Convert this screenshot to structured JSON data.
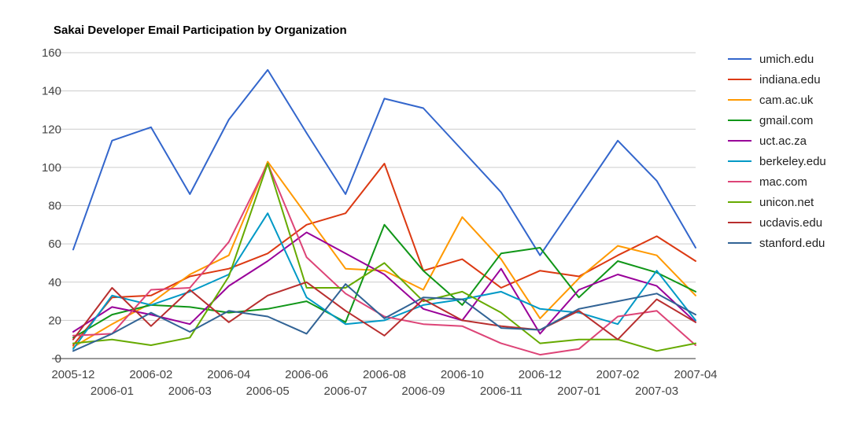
{
  "chart_data": {
    "type": "line",
    "title": "Sakai Developer Email Participation by Organization",
    "xlabel": "",
    "ylabel": "",
    "ylim": [
      0,
      160
    ],
    "yticks": [
      0,
      20,
      40,
      60,
      80,
      100,
      120,
      140,
      160
    ],
    "grid": true,
    "legend": "right",
    "categories": [
      "2005-12",
      "2006-01",
      "2006-02",
      "2006-03",
      "2006-04",
      "2006-05",
      "2006-06",
      "2006-07",
      "2006-08",
      "2006-09",
      "2006-10",
      "2006-11",
      "2006-12",
      "2007-01",
      "2007-02",
      "2007-03",
      "2007-04"
    ],
    "x_tick_labels": [
      {
        "label": "2005-12",
        "row": 0,
        "pos": 0
      },
      {
        "label": "2006-01",
        "row": 1,
        "pos": 1
      },
      {
        "label": "2006-02",
        "row": 0,
        "pos": 2
      },
      {
        "label": "2006-03",
        "row": 1,
        "pos": 3
      },
      {
        "label": "2006-04",
        "row": 0,
        "pos": 4
      },
      {
        "label": "2006-05",
        "row": 1,
        "pos": 5
      },
      {
        "label": "2006-06",
        "row": 0,
        "pos": 6
      },
      {
        "label": "2006-07",
        "row": 1,
        "pos": 7
      },
      {
        "label": "2006-08",
        "row": 0,
        "pos": 8
      },
      {
        "label": "2006-09",
        "row": 1,
        "pos": 9
      },
      {
        "label": "2006-10",
        "row": 0,
        "pos": 10
      },
      {
        "label": "2006-11",
        "row": 1,
        "pos": 11
      },
      {
        "label": "2006-12",
        "row": 0,
        "pos": 12
      },
      {
        "label": "2007-01",
        "row": 1,
        "pos": 13
      },
      {
        "label": "2007-02",
        "row": 0,
        "pos": 14
      },
      {
        "label": "2007-03",
        "row": 1,
        "pos": 15
      },
      {
        "label": "2007-04",
        "row": 0,
        "pos": 16
      }
    ],
    "series": [
      {
        "name": "umich.edu",
        "color": "#3366cc",
        "values": [
          57,
          114,
          121,
          86,
          125,
          151,
          118,
          86,
          136,
          131,
          109,
          87,
          54,
          84,
          114,
          93,
          58
        ]
      },
      {
        "name": "indiana.edu",
        "color": "#dc3912",
        "values": [
          7,
          32,
          33,
          43,
          47,
          55,
          70,
          76,
          102,
          46,
          52,
          37,
          46,
          43,
          54,
          64,
          51
        ]
      },
      {
        "name": "cam.ac.uk",
        "color": "#ff9900",
        "values": [
          6,
          18,
          29,
          44,
          54,
          103,
          75,
          47,
          46,
          36,
          74,
          52,
          21,
          42,
          59,
          54,
          33
        ]
      },
      {
        "name": "gmail.com",
        "color": "#109618",
        "values": [
          11,
          23,
          28,
          27,
          24,
          26,
          30,
          19,
          70,
          46,
          28,
          55,
          58,
          32,
          51,
          45,
          35
        ]
      },
      {
        "name": "uct.ac.za",
        "color": "#990099",
        "values": [
          14,
          27,
          23,
          18,
          38,
          51,
          66,
          55,
          44,
          26,
          20,
          47,
          13,
          36,
          44,
          38,
          19
        ]
      },
      {
        "name": "berkeley.edu",
        "color": "#0099c6",
        "values": [
          5,
          33,
          28,
          35,
          44,
          76,
          32,
          18,
          20,
          28,
          31,
          35,
          26,
          24,
          18,
          46,
          20
        ]
      },
      {
        "name": "mac.com",
        "color": "#dd4477",
        "values": [
          12,
          13,
          36,
          37,
          61,
          102,
          53,
          34,
          22,
          18,
          17,
          8,
          2,
          5,
          22,
          25,
          7
        ]
      },
      {
        "name": "unicon.net",
        "color": "#66aa00",
        "values": [
          8,
          10,
          7,
          11,
          43,
          102,
          37,
          37,
          50,
          30,
          35,
          24,
          8,
          10,
          10,
          4,
          8
        ]
      },
      {
        "name": "ucdavis.edu",
        "color": "#b82e2e",
        "values": [
          10,
          37,
          17,
          36,
          19,
          33,
          40,
          25,
          12,
          31,
          20,
          17,
          15,
          25,
          10,
          31,
          19
        ]
      },
      {
        "name": "stanford.edu",
        "color": "#316395",
        "values": [
          4,
          13,
          24,
          14,
          25,
          22,
          13,
          39,
          21,
          32,
          31,
          16,
          15,
          26,
          30,
          34,
          23
        ]
      }
    ]
  }
}
